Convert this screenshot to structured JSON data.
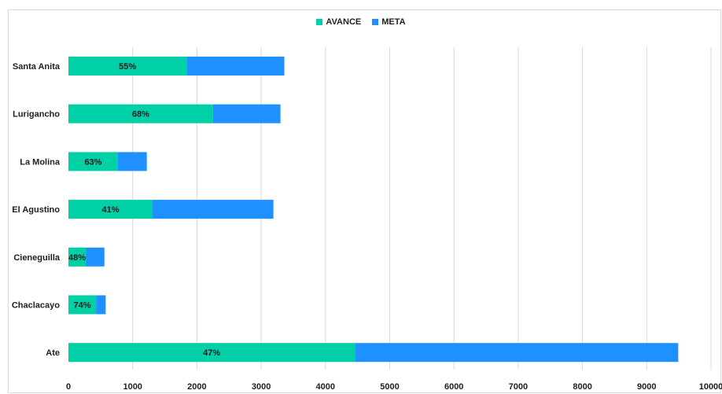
{
  "chart_data": {
    "type": "bar",
    "orientation": "horizontal",
    "stacked": true,
    "categories": [
      "Santa Anita",
      "Lurigancho",
      "La Molina",
      "El Agustino",
      "Cieneguilla",
      "Chaclacayo",
      "Ate"
    ],
    "series": [
      {
        "name": "AVANCE",
        "color": "#00D0A6",
        "values": [
          1840,
          2250,
          770,
          1310,
          270,
          430,
          4460
        ]
      },
      {
        "name": "META",
        "color": "#1E90FF",
        "values": [
          1520,
          1050,
          450,
          1880,
          290,
          150,
          5030
        ]
      }
    ],
    "data_labels": [
      "55%",
      "68%",
      "63%",
      "41%",
      "48%",
      "74%",
      "47%"
    ],
    "xlim": [
      0,
      10000
    ],
    "xticks": [
      0,
      1000,
      2000,
      3000,
      4000,
      5000,
      6000,
      7000,
      8000,
      9000,
      10000
    ],
    "grid": true,
    "legend_position": "top"
  }
}
